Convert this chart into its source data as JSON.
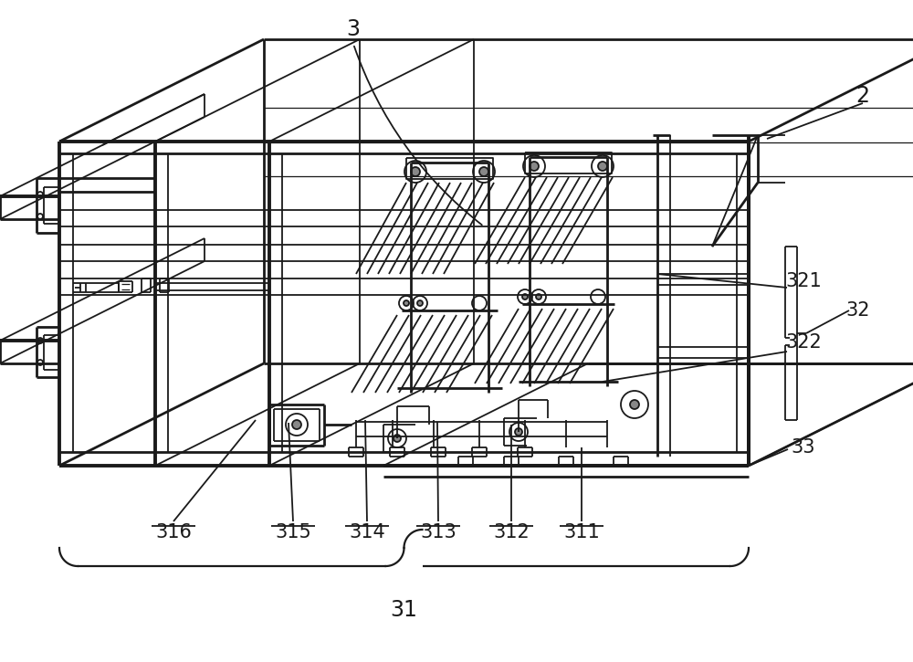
{
  "bg_color": "#ffffff",
  "line_color": "#1a1a1a",
  "lw": 1.3,
  "lw2": 2.0,
  "lw3": 2.8,
  "figsize": [
    10.0,
    7.25
  ],
  "dpi": 100,
  "label_fontsize": 15,
  "label_fontsize_sm": 13
}
